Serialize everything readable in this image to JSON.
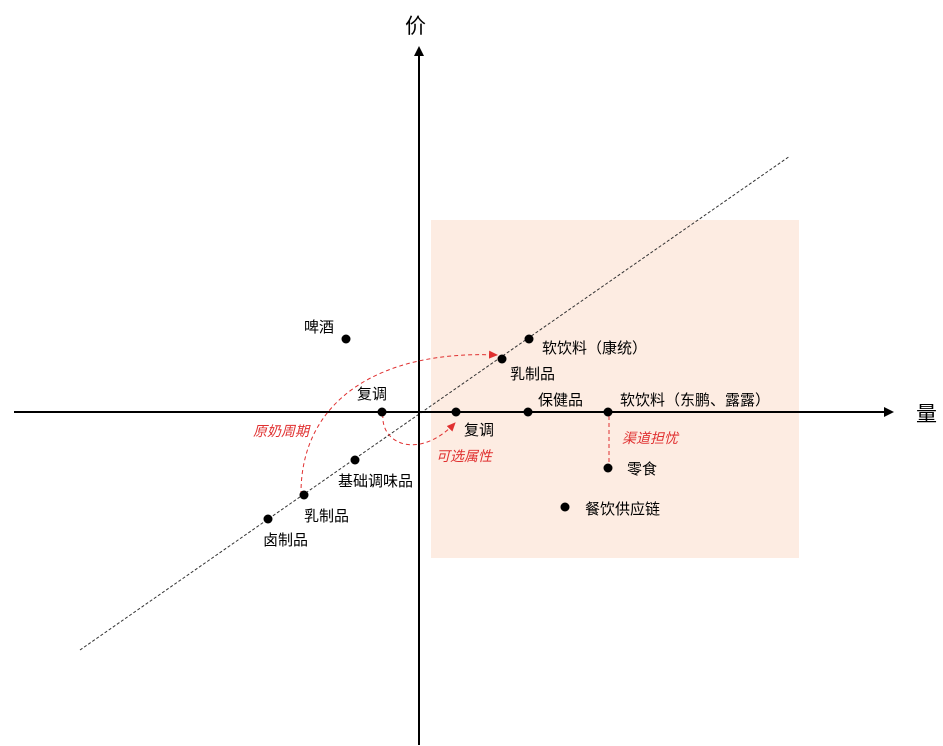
{
  "axes": {
    "y_label": "价",
    "x_label": "量"
  },
  "colors": {
    "highlight_zone": "#fdece2",
    "annotation": "#e03030",
    "ink": "#000000"
  },
  "points": [
    {
      "id": "beer",
      "label": "啤酒"
    },
    {
      "id": "softdrink-ks",
      "label": "软饮料（康统）"
    },
    {
      "id": "dairy-upper",
      "label": "乳制品"
    },
    {
      "id": "compound-seasoning-left",
      "label": "复调"
    },
    {
      "id": "compound-seasoning-right",
      "label": "复调"
    },
    {
      "id": "health-products",
      "label": "保健品"
    },
    {
      "id": "softdrink-dp",
      "label": "软饮料（东鹏、露露）"
    },
    {
      "id": "basic-seasoning",
      "label": "基础调味品"
    },
    {
      "id": "dairy-lower",
      "label": "乳制品"
    },
    {
      "id": "braised-products",
      "label": "卤制品"
    },
    {
      "id": "snacks",
      "label": "零食"
    },
    {
      "id": "catering-supply-chain",
      "label": "餐饮供应链"
    }
  ],
  "annotations": {
    "milk_cycle": "原奶周期",
    "optional_attribute": "可选属性",
    "channel_concern": "渠道担忧"
  }
}
